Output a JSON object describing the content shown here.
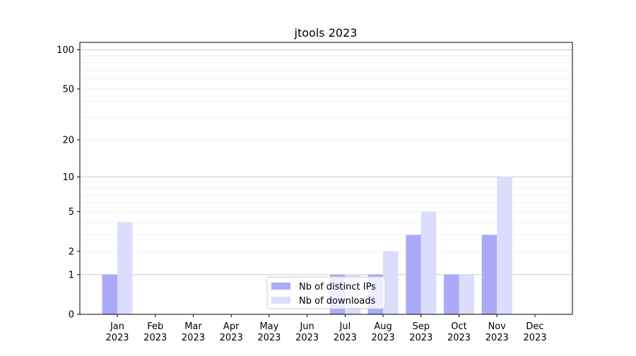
{
  "chart_data": {
    "type": "bar",
    "title": "jtools 2023",
    "xlabel": "",
    "ylabel": "",
    "yscale": "log(1+y)",
    "ylim": [
      0,
      114
    ],
    "yticks": [
      0,
      1,
      2,
      5,
      10,
      20,
      50,
      100
    ],
    "grid": true,
    "legend_placement": "lower-center",
    "categories": [
      "Jan\n2023",
      "Feb\n2023",
      "Mar\n2023",
      "Apr\n2023",
      "May\n2023",
      "Jun\n2023",
      "Jul\n2023",
      "Aug\n2023",
      "Sep\n2023",
      "Oct\n2023",
      "Nov\n2023",
      "Dec\n2023"
    ],
    "series": [
      {
        "name": "Nb of distinct IPs",
        "color": "#aaaaf8",
        "values": [
          1,
          0,
          0,
          0,
          0,
          0,
          1,
          1,
          3,
          1,
          3,
          0
        ]
      },
      {
        "name": "Nb of downloads",
        "color": "#dcdcfc",
        "values": [
          4,
          0,
          0,
          0,
          0,
          0,
          1,
          2,
          5,
          1,
          10,
          0
        ]
      }
    ]
  }
}
